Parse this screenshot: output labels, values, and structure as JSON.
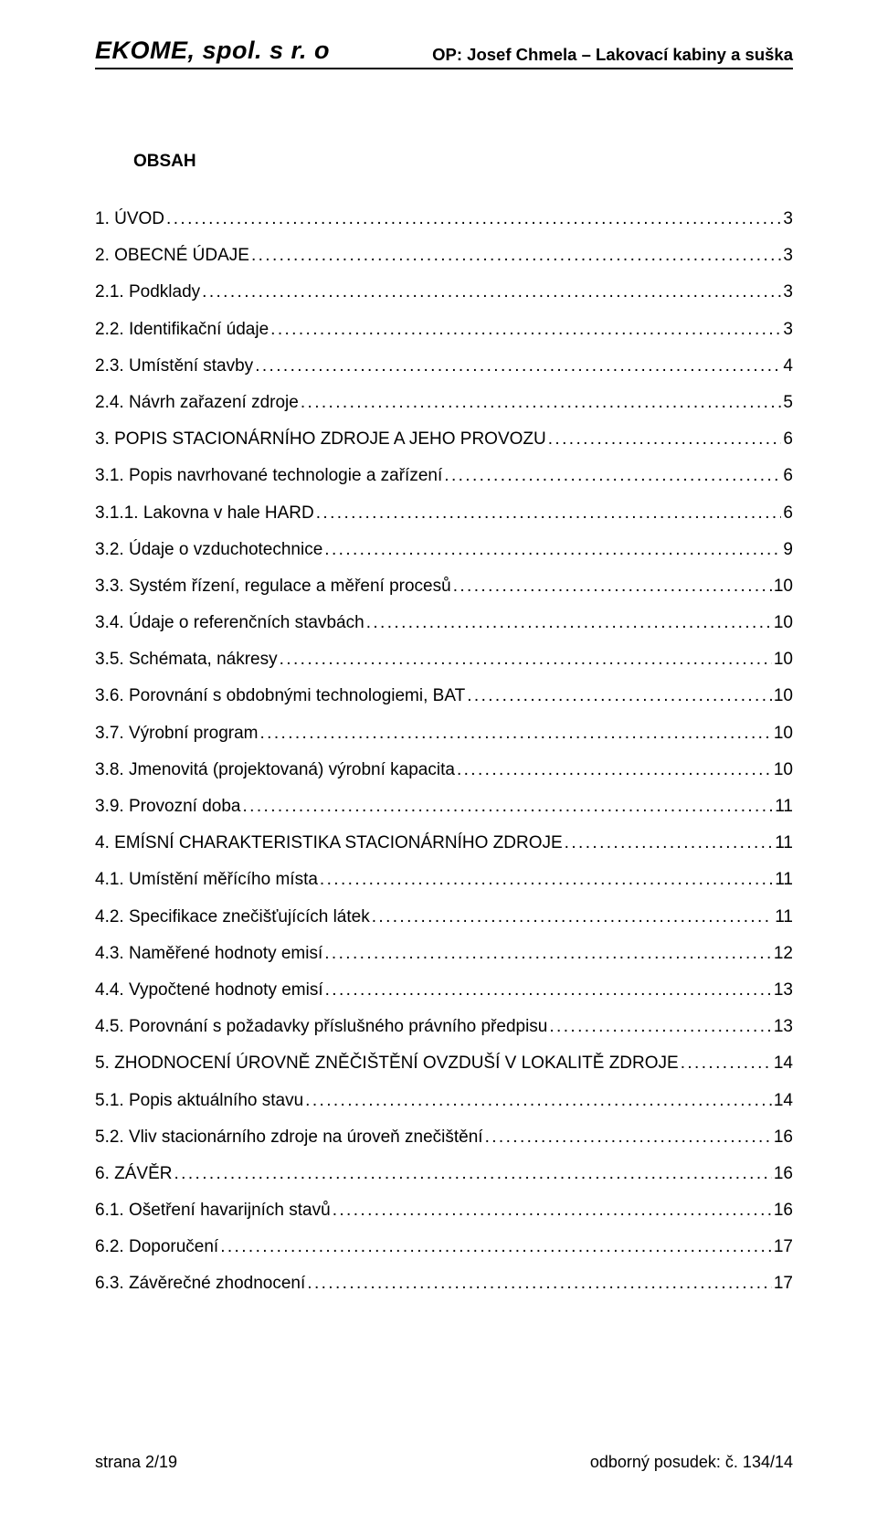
{
  "header": {
    "company": "EKOME, spol. s r. o",
    "project": "OP: Josef Chmela – Lakovací kabiny a suška"
  },
  "obsah_title": "OBSAH",
  "toc": [
    {
      "label": "1. ÚVOD",
      "page": "3",
      "indent": 0
    },
    {
      "label": "2. OBECNÉ ÚDAJE",
      "page": "3",
      "indent": 0
    },
    {
      "label": "2.1. Podklady",
      "page": "3",
      "indent": 1
    },
    {
      "label": "2.2. Identifikační údaje",
      "page": "3",
      "indent": 1
    },
    {
      "label": "2.3. Umístění stavby",
      "page": "4",
      "indent": 1
    },
    {
      "label": "2.4. Návrh zařazení zdroje",
      "page": "5",
      "indent": 1
    },
    {
      "label": "3. POPIS STACIONÁRNÍHO ZDROJE A JEHO PROVOZU",
      "page": "6",
      "indent": 0
    },
    {
      "label": "3.1. Popis navrhované technologie a zařízení",
      "page": "6",
      "indent": 1
    },
    {
      "label": "3.1.1. Lakovna v hale HARD",
      "page": "6",
      "indent": 2
    },
    {
      "label": "3.2. Údaje o vzduchotechnice",
      "page": "9",
      "indent": 1
    },
    {
      "label": "3.3. Systém řízení, regulace a měření procesů",
      "page": "10",
      "indent": 1
    },
    {
      "label": "3.4. Údaje o referenčních stavbách",
      "page": "10",
      "indent": 1
    },
    {
      "label": "3.5. Schémata, nákresy",
      "page": "10",
      "indent": 1
    },
    {
      "label": "3.6. Porovnání s obdobnými technologiemi, BAT",
      "page": "10",
      "indent": 1
    },
    {
      "label": "3.7. Výrobní program",
      "page": "10",
      "indent": 1
    },
    {
      "label": "3.8. Jmenovitá (projektovaná) výrobní kapacita",
      "page": "10",
      "indent": 1
    },
    {
      "label": "3.9. Provozní doba",
      "page": "11",
      "indent": 1
    },
    {
      "label": "4. EMÍSNÍ CHARAKTERISTIKA STACIONÁRNÍHO ZDROJE",
      "page": "11",
      "indent": 0
    },
    {
      "label": "4.1. Umístění měřícího místa",
      "page": "11",
      "indent": 1
    },
    {
      "label": "4.2. Specifikace znečišťujících látek",
      "page": "11",
      "indent": 1
    },
    {
      "label": "4.3. Naměřené hodnoty emisí",
      "page": "12",
      "indent": 1
    },
    {
      "label": "4.4. Vypočtené hodnoty emisí",
      "page": "13",
      "indent": 1
    },
    {
      "label": "4.5. Porovnání s požadavky příslušného právního předpisu",
      "page": "13",
      "indent": 1
    },
    {
      "label": "5. ZHODNOCENÍ ÚROVNĚ ZNĚČIŠTĚNÍ OVZDUŠÍ V LOKALITĚ ZDROJE",
      "page": "14",
      "indent": 0
    },
    {
      "label": "5.1. Popis aktuálního stavu",
      "page": "14",
      "indent": 1
    },
    {
      "label": "5.2. Vliv stacionárního zdroje na úroveň znečištění",
      "page": "16",
      "indent": 1
    },
    {
      "label": "6. ZÁVĚR",
      "page": "16",
      "indent": 0
    },
    {
      "label": "6.1. Ošetření havarijních stavů",
      "page": "16",
      "indent": 1
    },
    {
      "label": "6.2. Doporučení",
      "page": "17",
      "indent": 1
    },
    {
      "label": "6.3. Závěrečné zhodnocení",
      "page": "17",
      "indent": 1
    }
  ],
  "footer": {
    "left": "strana 2/19",
    "right": "odborný posudek: č. 134/14"
  },
  "colors": {
    "text": "#000000",
    "background": "#ffffff",
    "rule": "#000000"
  },
  "typography": {
    "header_left_fontsize": 27,
    "header_right_fontsize": 18.5,
    "body_fontsize": 19,
    "footer_fontsize": 18
  }
}
